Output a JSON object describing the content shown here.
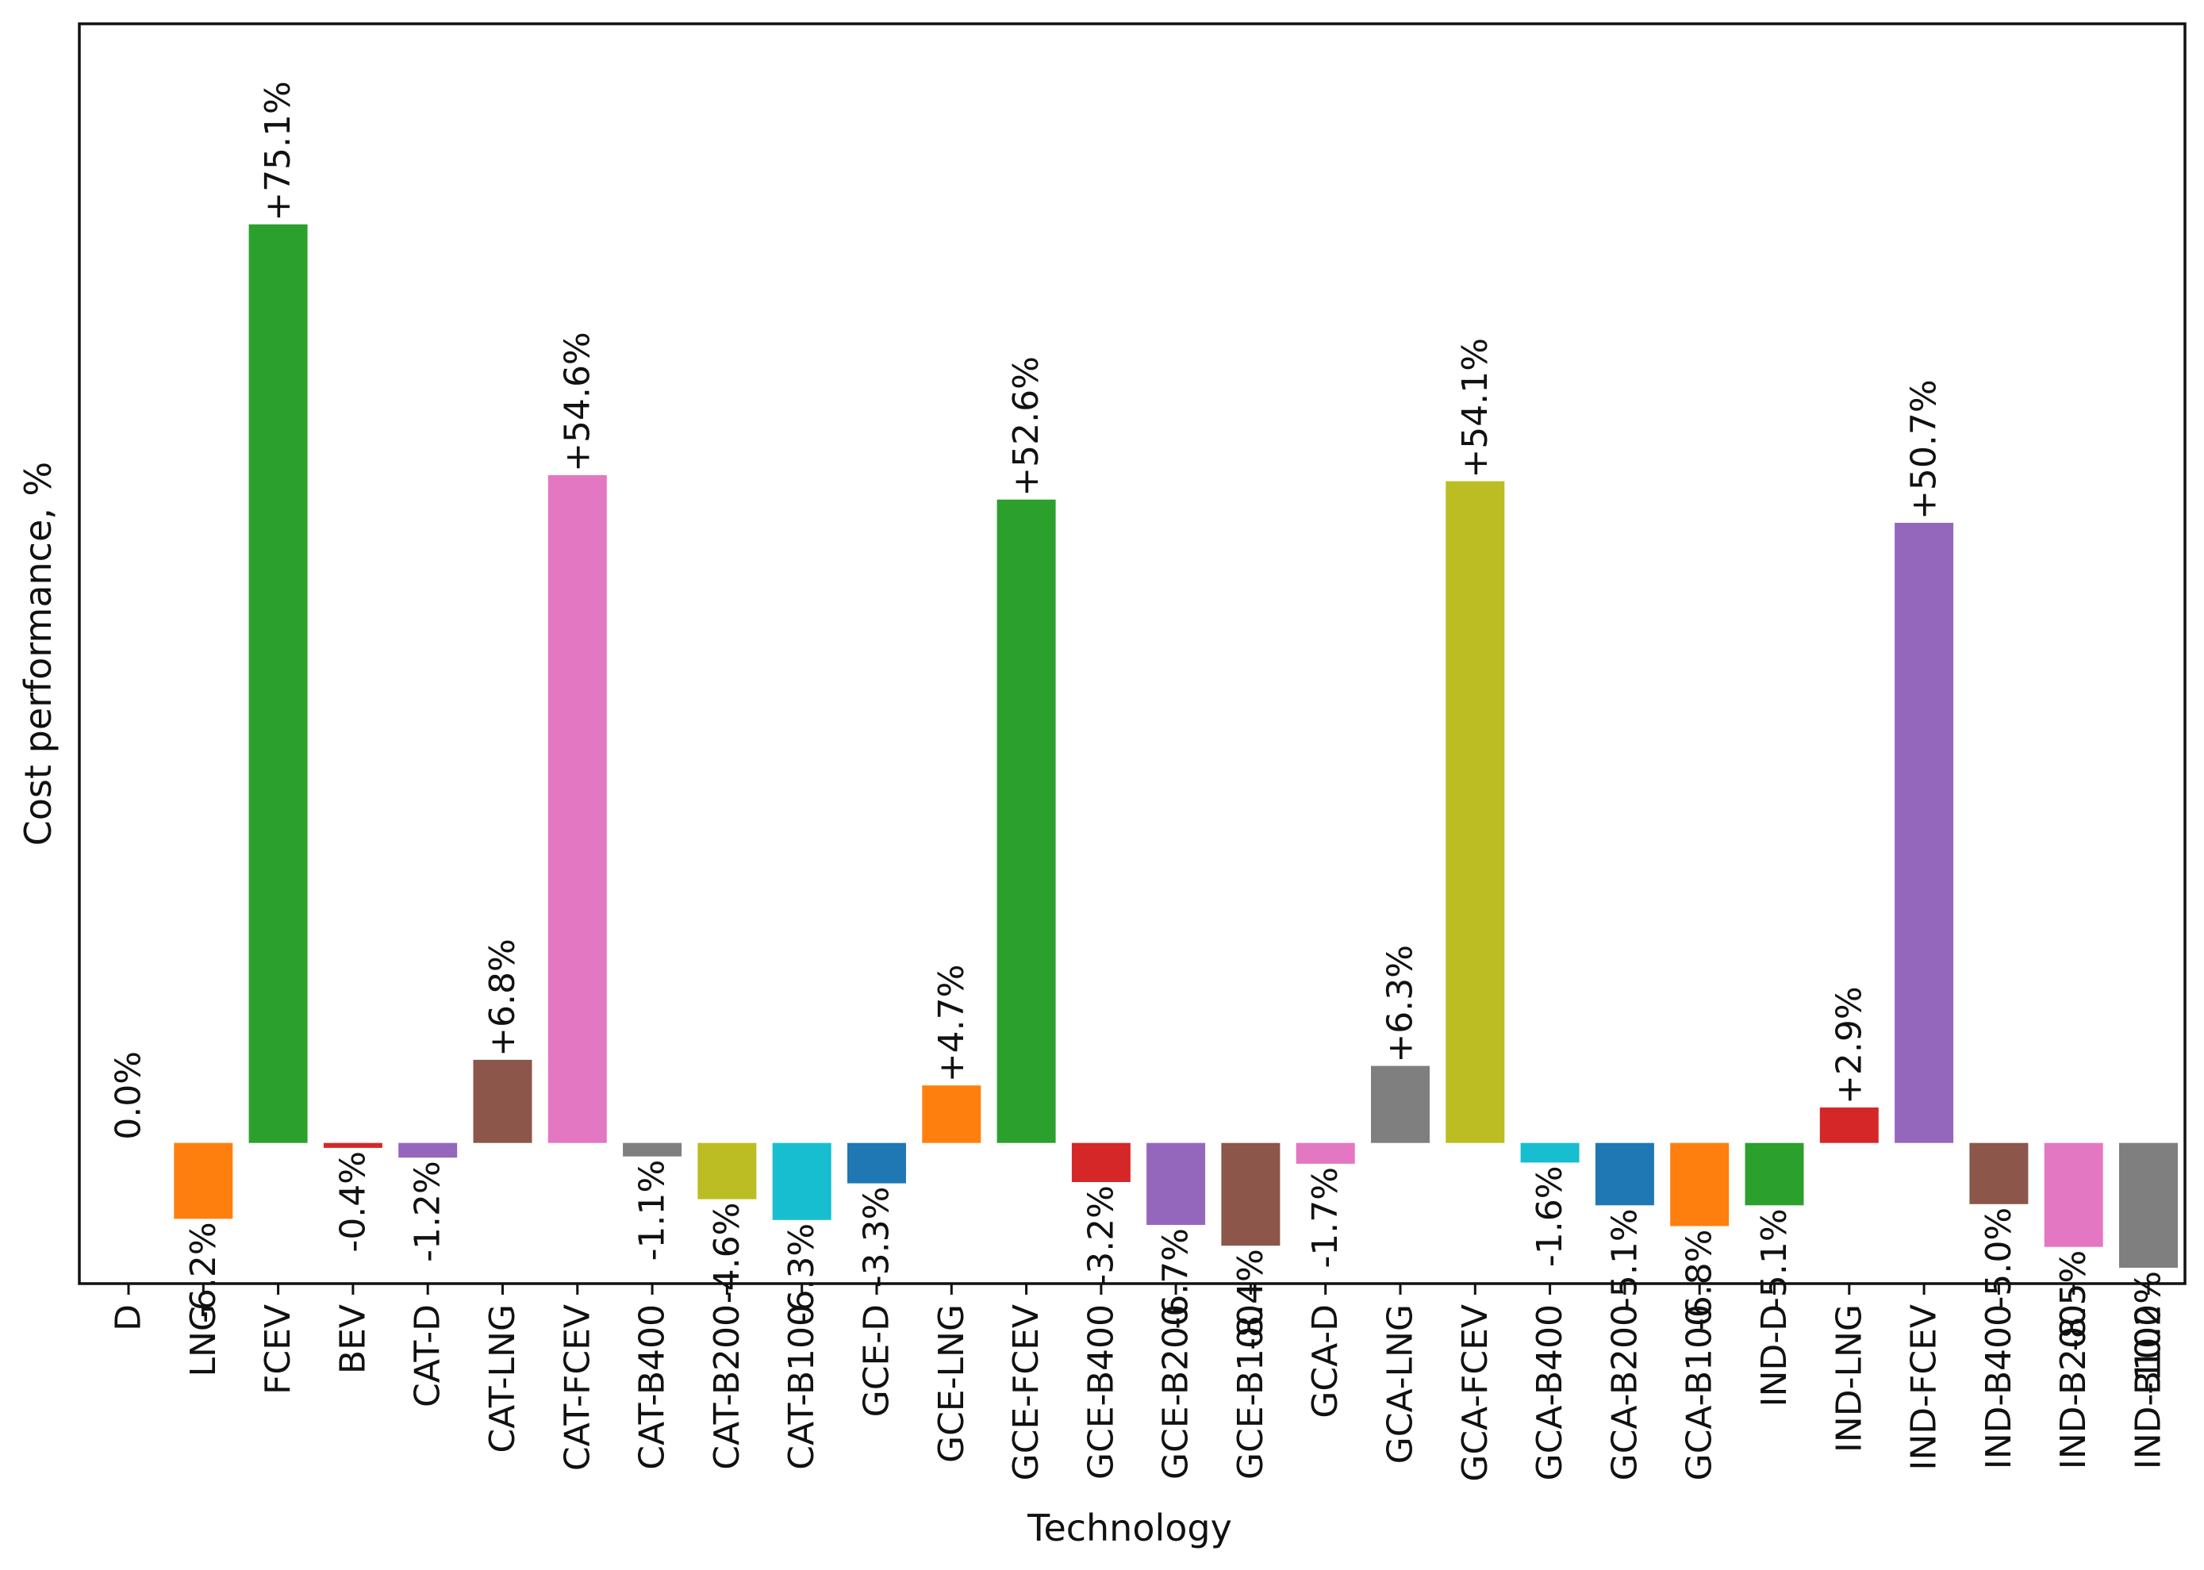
{
  "chart_data": {
    "type": "bar",
    "title": "",
    "xlabel": "Technology",
    "ylabel": "Cost performance, %",
    "ylim": [
      -11.5,
      91.5
    ],
    "grid": false,
    "categories": [
      "D",
      "LNG",
      "FCEV",
      "BEV",
      "CAT-D",
      "CAT-LNG",
      "CAT-FCEV",
      "CAT-B400",
      "CAT-B200",
      "CAT-B100",
      "GCE-D",
      "GCE-LNG",
      "GCE-FCEV",
      "GCE-B400",
      "GCE-B200",
      "GCE-B100",
      "GCA-D",
      "GCA-LNG",
      "GCA-FCEV",
      "GCA-B400",
      "GCA-B200",
      "GCA-B100",
      "IND-D",
      "IND-LNG",
      "IND-FCEV",
      "IND-B400",
      "IND-B200",
      "IND-B100"
    ],
    "values": [
      0.0,
      -6.2,
      75.1,
      -0.4,
      -1.2,
      6.8,
      54.6,
      -1.1,
      -4.6,
      -6.3,
      -3.3,
      4.7,
      52.6,
      -3.2,
      -6.7,
      -8.4,
      -1.7,
      6.3,
      54.1,
      -1.6,
      -5.1,
      -6.8,
      -5.1,
      2.9,
      50.7,
      -5.0,
      -8.5,
      -10.2
    ],
    "labels": [
      "0.0%",
      "-6.2%",
      "+75.1%",
      "-0.4%",
      "-1.2%",
      "+6.8%",
      "+54.6%",
      "-1.1%",
      "-4.6%",
      "-6.3%",
      "-3.3%",
      "+4.7%",
      "+52.6%",
      "-3.2%",
      "-6.7%",
      "-8.4%",
      "-1.7%",
      "+6.3%",
      "+54.1%",
      "-1.6%",
      "-5.1%",
      "-6.8%",
      "-5.1%",
      "+2.9%",
      "+50.7%",
      "-5.0%",
      "-8.5%",
      "-10.2%"
    ],
    "colors": [
      "#1f77b4",
      "#ff7f0e",
      "#2ca02c",
      "#d62728",
      "#9467bd",
      "#8c564b",
      "#e377c2",
      "#7f7f7f",
      "#bcbd22",
      "#17becf",
      "#1f77b4",
      "#ff7f0e",
      "#2ca02c",
      "#d62728",
      "#9467bd",
      "#8c564b",
      "#e377c2",
      "#7f7f7f",
      "#bcbd22",
      "#17becf",
      "#1f77b4",
      "#ff7f0e",
      "#2ca02c",
      "#d62728",
      "#9467bd",
      "#8c564b",
      "#e377c2",
      "#7f7f7f"
    ]
  }
}
